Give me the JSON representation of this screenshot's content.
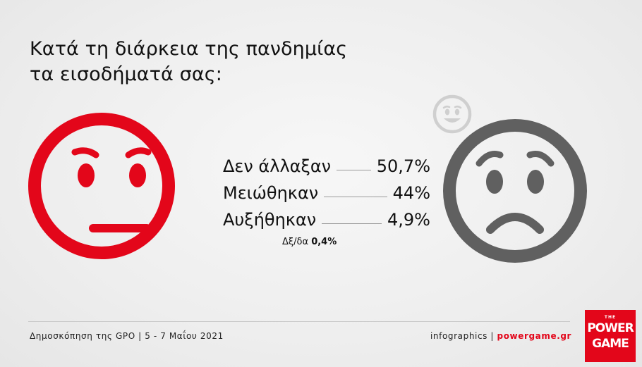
{
  "title": {
    "line1": "Κατά τη διάρκεια της πανδημίας",
    "line2": "τα εισοδήματά σας:"
  },
  "chart_data": {
    "type": "table",
    "categories": [
      "Δεν άλλαξαν",
      "Μειώθηκαν",
      "Αυξήθηκαν"
    ],
    "values": [
      50.7,
      44,
      4.9
    ],
    "value_labels": [
      "50,7%",
      "44%",
      "4,9%"
    ],
    "note": {
      "label": "Δξ/δα",
      "value": "0,4%"
    }
  },
  "icons": {
    "left": "neutral-face-icon",
    "right": "sad-face-icon",
    "small": "smiling-face-icon"
  },
  "colors": {
    "accent": "#e3061a",
    "neutral_face": "#e3061a",
    "sad_face": "#606060",
    "smile_face": "#cfcfcf"
  },
  "footer": {
    "source": "Δημοσκόπηση της GPO | 5 - 7 Μαΐου 2021",
    "credit_prefix": "infographics | ",
    "credit_brand": "powergame.gr"
  },
  "logo": {
    "the": "THE",
    "line1": "POWER",
    "line2": "GAME"
  }
}
